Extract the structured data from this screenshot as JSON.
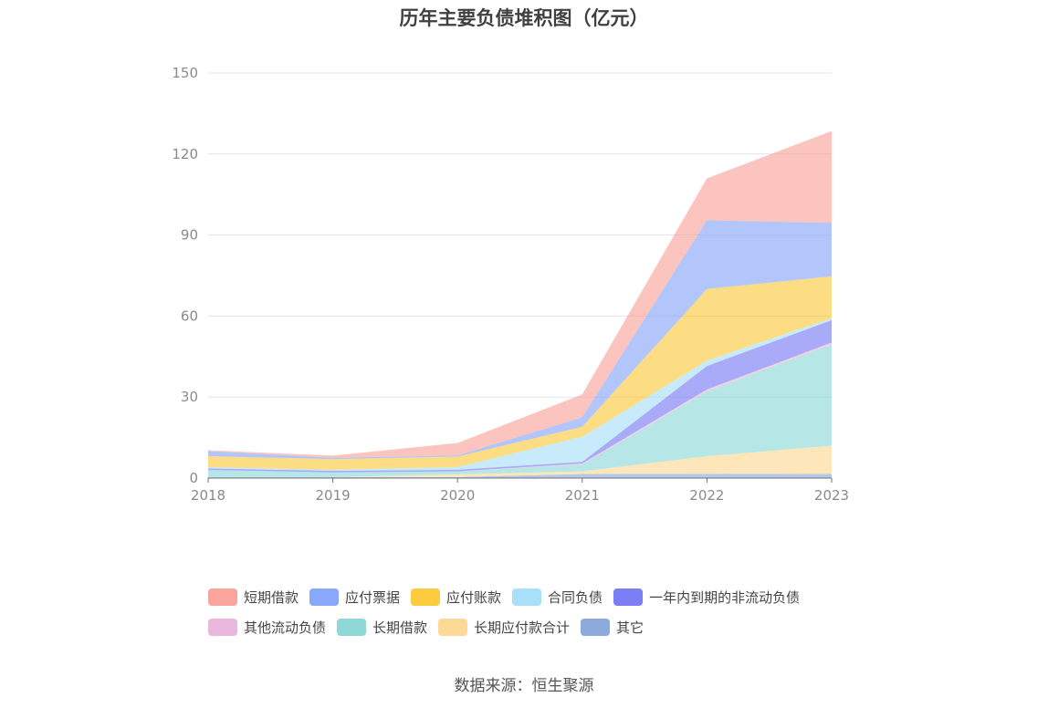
{
  "chart_data": {
    "type": "area",
    "stacked": true,
    "title": "历年主要负债堆积图（亿元）",
    "x": [
      "2018",
      "2019",
      "2020",
      "2021",
      "2022",
      "2023"
    ],
    "yticks": [
      "0",
      "30",
      "60",
      "90",
      "120",
      "150"
    ],
    "ylim": [
      0,
      150
    ],
    "grid": true,
    "legend_position": "bottom",
    "series": [
      {
        "name": "其它",
        "color": "#8eaadb",
        "values": [
          0.4,
          0.4,
          0.4,
          1.5,
          1.6,
          1.5
        ]
      },
      {
        "name": "长期应付款合计",
        "color": "#fdd997",
        "values": [
          0,
          0,
          1.0,
          1.0,
          6.5,
          10.5
        ]
      },
      {
        "name": "长期借款",
        "color": "#8fd8d8",
        "values": [
          2.6,
          1.7,
          1.1,
          2.5,
          24.0,
          37.5
        ]
      },
      {
        "name": "其他流动负债",
        "color": "#e9b8dc",
        "values": [
          0,
          0,
          0,
          0.4,
          0.7,
          0.7
        ]
      },
      {
        "name": "一年内到期的非流动负债",
        "color": "#7b7ef5",
        "values": [
          0.6,
          0.6,
          0.6,
          0.6,
          8.7,
          8.3
        ]
      },
      {
        "name": "合同负债",
        "color": "#a9e0f9",
        "values": [
          0.4,
          0.4,
          1.0,
          9.3,
          2.0,
          0.7
        ]
      },
      {
        "name": "应付账款",
        "color": "#fccb40",
        "values": [
          4.1,
          3.9,
          3.9,
          3.7,
          26.5,
          15.5
        ]
      },
      {
        "name": "应付票据",
        "color": "#89a8fb",
        "values": [
          1.9,
          0.5,
          0.4,
          3.5,
          25.5,
          19.8
        ]
      },
      {
        "name": "短期借款",
        "color": "#f9a59c",
        "values": [
          0.3,
          0.8,
          4.6,
          8.5,
          15.5,
          34.0
        ]
      }
    ]
  },
  "legend": {
    "rows": [
      [
        {
          "name": "短期借款",
          "color": "#f9a59c"
        },
        {
          "name": "应付票据",
          "color": "#89a8fb"
        },
        {
          "name": "应付账款",
          "color": "#fccb40"
        },
        {
          "name": "合同负债",
          "color": "#a9e0f9"
        },
        {
          "name": "一年内到期的非流动负债",
          "color": "#7b7ef5"
        }
      ],
      [
        {
          "name": "其他流动负债",
          "color": "#e9b8dc"
        },
        {
          "name": "长期借款",
          "color": "#8fd8d8"
        },
        {
          "name": "长期应付款合计",
          "color": "#fdd997"
        },
        {
          "name": "其它",
          "color": "#8eaadb"
        }
      ]
    ]
  },
  "source": "数据来源：恒生聚源"
}
